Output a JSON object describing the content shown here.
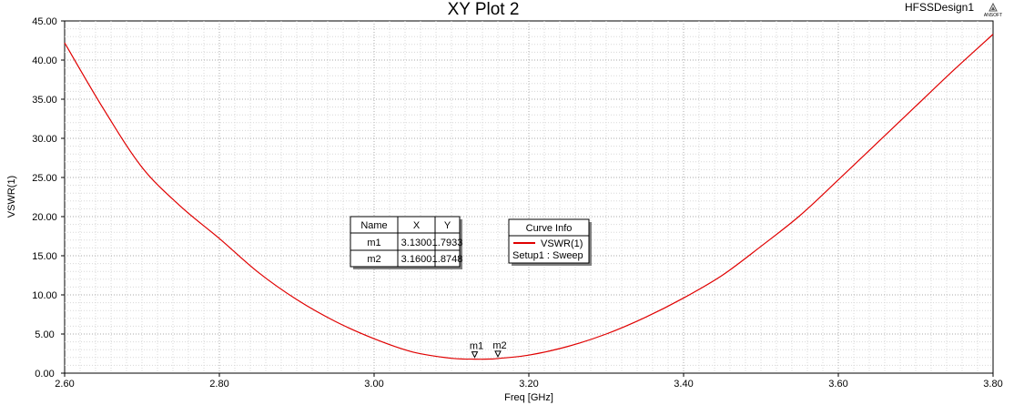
{
  "header": {
    "title": "XY Plot 2",
    "design_name": "HFSSDesign1",
    "logo_text": "ANSOFT"
  },
  "chart_data": {
    "type": "line",
    "title": "XY Plot 2",
    "xlabel": "Freq [GHz]",
    "ylabel": "VSWR(1)",
    "xlim": [
      2.6,
      3.8
    ],
    "ylim": [
      0,
      45
    ],
    "x_ticks": [
      "2.60",
      "2.80",
      "3.00",
      "3.20",
      "3.40",
      "3.60",
      "3.80"
    ],
    "y_ticks": [
      "0.00",
      "5.00",
      "10.00",
      "15.00",
      "20.00",
      "25.00",
      "30.00",
      "35.00",
      "40.00",
      "45.00"
    ],
    "grid": true,
    "series": [
      {
        "name": "VSWR(1)",
        "color": "#e00000",
        "x": [
          2.6,
          2.65,
          2.7,
          2.75,
          2.8,
          2.85,
          2.9,
          2.95,
          3.0,
          3.05,
          3.1,
          3.13,
          3.15,
          3.16,
          3.2,
          3.25,
          3.3,
          3.35,
          3.4,
          3.45,
          3.5,
          3.55,
          3.6,
          3.65,
          3.7,
          3.75,
          3.8
        ],
        "y": [
          42.2,
          33.8,
          26.3,
          21.3,
          17.2,
          12.9,
          9.4,
          6.6,
          4.4,
          2.7,
          1.9,
          1.79,
          1.8,
          1.87,
          2.3,
          3.4,
          5.0,
          7.1,
          9.6,
          12.5,
          16.2,
          20.1,
          24.7,
          29.4,
          34.1,
          38.8,
          43.3
        ]
      }
    ],
    "markers": [
      {
        "name": "m1",
        "x": 3.13,
        "y": 1.7933
      },
      {
        "name": "m2",
        "x": 3.16,
        "y": 1.8748
      }
    ]
  },
  "marker_table": {
    "headers": [
      "Name",
      "X",
      "Y"
    ],
    "rows": [
      [
        "m1",
        "3.1300",
        "1.7933"
      ],
      [
        "m2",
        "3.1600",
        "1.8748"
      ]
    ]
  },
  "legend": {
    "title": "Curve Info",
    "entries": [
      {
        "label": "VSWR(1)",
        "sub": "Setup1 : Sweep",
        "color": "#e00000"
      }
    ]
  }
}
